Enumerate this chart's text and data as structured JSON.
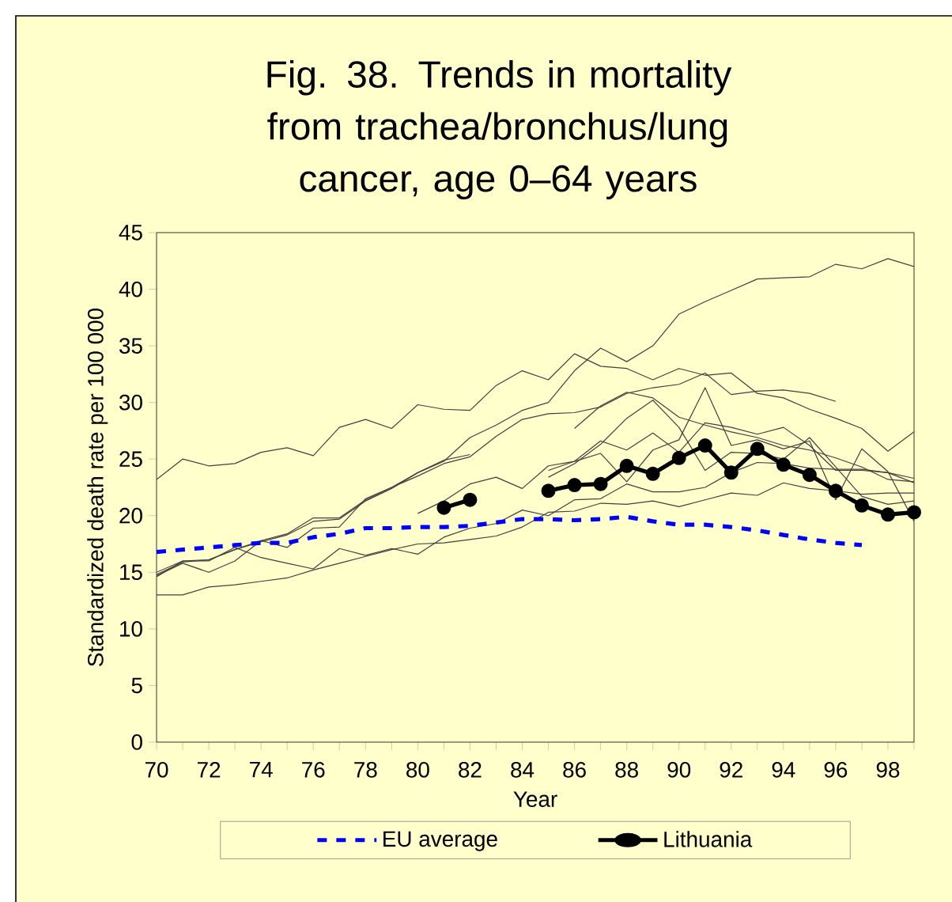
{
  "chart_data": {
    "type": "line",
    "title": "Fig. 38. Trends in mortality from trachea/bronchus/lung cancer, age 0–64 years",
    "xlabel": "Year",
    "ylabel": "Standardized death rate per 100 000",
    "x": [
      70,
      71,
      72,
      73,
      74,
      75,
      76,
      77,
      78,
      79,
      80,
      81,
      82,
      83,
      84,
      85,
      86,
      87,
      88,
      89,
      90,
      91,
      92,
      93,
      94,
      95,
      96,
      97,
      98,
      99
    ],
    "xlim": [
      70,
      99
    ],
    "ylim": [
      0,
      45
    ],
    "xticks": [
      70,
      {
        "value": 71,
        "label": null
      },
      72,
      {
        "value": 73,
        "label": null
      },
      74,
      {
        "value": 75,
        "label": null
      },
      76,
      {
        "value": 77,
        "label": null
      },
      78,
      {
        "value": 79,
        "label": null
      },
      80,
      {
        "value": 81,
        "label": null
      },
      82,
      {
        "value": 83,
        "label": null
      },
      84,
      {
        "value": 85,
        "label": null
      },
      86,
      {
        "value": 87,
        "label": null
      },
      88,
      {
        "value": 89,
        "label": null
      },
      90,
      {
        "value": 91,
        "label": null
      },
      92,
      {
        "value": 93,
        "label": null
      },
      94,
      {
        "value": 95,
        "label": null
      },
      96,
      {
        "value": 97,
        "label": null
      },
      98,
      {
        "value": 99,
        "label": null
      }
    ],
    "yticks": [
      0,
      5,
      10,
      15,
      20,
      25,
      30,
      35,
      40,
      45
    ],
    "grid": false,
    "legend": "bottom",
    "series": [
      {
        "color": "#404040",
        "values": [
          23.2,
          25.0,
          24.4,
          24.6,
          25.6,
          26.0,
          25.3,
          27.8,
          28.5,
          27.7,
          29.8,
          29.4,
          29.3,
          31.5,
          32.8,
          32.0,
          34.3,
          33.2,
          33.0,
          32.0,
          33.0,
          32.4,
          32.6,
          30.8,
          30.4,
          29.4,
          28.6,
          27.7,
          25.7,
          27.4
        ]
      },
      {
        "color": "#404040",
        "values": [
          14.8,
          15.9,
          16.1,
          17.0,
          17.7,
          18.3,
          19.5,
          19.7,
          21.3,
          22.4,
          23.8,
          24.8,
          26.9,
          28.0,
          29.3,
          30.0,
          32.8,
          34.8,
          33.6,
          35.0,
          37.8,
          38.9,
          39.9,
          40.9,
          41.0,
          41.1,
          42.2,
          41.8,
          42.7,
          42.0
        ]
      },
      {
        "color": "#404040",
        "values": [
          15.0,
          16.0,
          16.1,
          17.0,
          17.8,
          18.4,
          19.8,
          19.8,
          21.4,
          22.5,
          23.5,
          24.6,
          25.2,
          27.0,
          28.5,
          29.0,
          29.1,
          29.6,
          30.8,
          31.3,
          31.6,
          32.6,
          30.7,
          31.0,
          31.1,
          30.8,
          30.1,
          null,
          null,
          null
        ]
      },
      {
        "color": "#404040",
        "values": [
          14.7,
          15.8,
          15.0,
          16.0,
          17.8,
          17.2,
          18.9,
          19.0,
          21.5,
          22.5,
          23.8,
          24.9,
          25.4,
          null,
          null,
          null,
          null,
          null,
          null,
          null,
          null,
          null,
          null,
          null,
          null,
          null,
          null,
          null,
          null,
          null
        ]
      },
      {
        "color": "#404040",
        "values": [
          14.6,
          16.0,
          16.0,
          17.2,
          16.3,
          15.8,
          15.3,
          17.1,
          16.5,
          17.1,
          16.6,
          18.1,
          18.9,
          19.3,
          20.5,
          20.0,
          21.4,
          21.5,
          22.8,
          22.1,
          22.1,
          22.5,
          23.8,
          24.7,
          24.6,
          24.2,
          24.1,
          24.1,
          23.8,
          23.3
        ]
      },
      {
        "color": "#404040",
        "values": [
          13.0,
          13.0,
          13.7,
          13.9,
          14.2,
          14.5,
          15.2,
          15.8,
          16.4,
          17.0,
          17.5,
          17.6,
          17.9,
          18.2,
          19.0,
          20.3,
          20.4,
          21.1,
          21.0,
          21.3,
          20.8,
          21.4,
          22.0,
          21.8,
          22.9,
          22.4,
          22.2,
          21.9,
          22.0,
          22.0
        ]
      },
      {
        "color": "#404040",
        "values": [
          null,
          null,
          null,
          null,
          null,
          null,
          null,
          null,
          null,
          null,
          20.2,
          21.3,
          22.8,
          23.4,
          22.4,
          24.4,
          24.8,
          26.6,
          25.8,
          27.3,
          25.6,
          28.2,
          27.8,
          27.2,
          27.8,
          26.2,
          24.0,
          24.0,
          23.8,
          22.9
        ]
      },
      {
        "color": "#404040",
        "values": [
          null,
          null,
          null,
          null,
          null,
          null,
          null,
          null,
          null,
          null,
          null,
          null,
          null,
          null,
          null,
          23.4,
          24.6,
          26.3,
          28.6,
          30.2,
          27.8,
          24.0,
          25.6,
          25.5,
          25.0,
          26.9,
          24.3,
          21.7,
          21.0,
          21.3
        ]
      },
      {
        "color": "#404040",
        "values": [
          null,
          null,
          null,
          null,
          null,
          null,
          null,
          null,
          null,
          null,
          null,
          null,
          null,
          null,
          null,
          null,
          27.7,
          29.7,
          30.9,
          30.4,
          28.7,
          28.0,
          27.4,
          26.9,
          26.2,
          25.8,
          25.1,
          24.3,
          23.2,
          23.0
        ]
      },
      {
        "color": "#404040",
        "values": [
          null,
          null,
          null,
          null,
          null,
          null,
          null,
          null,
          null,
          null,
          null,
          null,
          null,
          null,
          null,
          24.0,
          24.8,
          25.5,
          23.0,
          25.8,
          26.7,
          31.3,
          26.2,
          26.7,
          25.9,
          26.6,
          21.4,
          25.9,
          23.9,
          19.5
        ]
      },
      {
        "name": "EU average",
        "color": "#0000ff",
        "line_style": "dashed",
        "marker": "none",
        "values": [
          16.8,
          17.0,
          17.2,
          17.4,
          17.6,
          17.6,
          18.1,
          18.4,
          18.9,
          18.9,
          19.0,
          19.0,
          19.1,
          19.4,
          19.7,
          19.7,
          19.6,
          19.7,
          19.9,
          19.5,
          19.2,
          19.2,
          19.0,
          18.7,
          18.3,
          17.9,
          17.6,
          17.4,
          null,
          null
        ]
      },
      {
        "name": "Lithuania",
        "color": "#000000",
        "line_style": "solid",
        "marker": "circle",
        "values": [
          null,
          null,
          null,
          null,
          null,
          null,
          null,
          null,
          null,
          null,
          null,
          20.7,
          21.4,
          null,
          null,
          22.2,
          22.7,
          22.8,
          24.4,
          23.7,
          25.1,
          26.2,
          23.8,
          25.9,
          24.5,
          23.6,
          22.2,
          20.9,
          20.1,
          20.3
        ]
      }
    ]
  }
}
